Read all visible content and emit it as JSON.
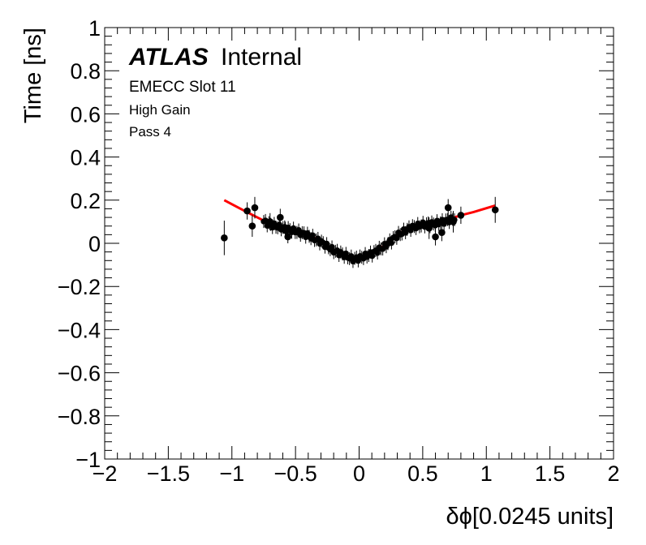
{
  "chart_data": {
    "type": "scatter",
    "xlabel": "δϕ[0.0245 units]",
    "ylabel": "Time [ns]",
    "xlim": [
      -2,
      2
    ],
    "ylim": [
      -1,
      1
    ],
    "x_ticks": [
      -2,
      -1.5,
      -1,
      -0.5,
      0,
      0.5,
      1,
      1.5,
      2
    ],
    "x_tick_labels": [
      "−2",
      "−1.5",
      "−1",
      "−0.5",
      "0",
      "0.5",
      "1",
      "1.5",
      "2"
    ],
    "y_ticks": [
      -1,
      -0.8,
      -0.6,
      -0.4,
      -0.2,
      0,
      0.2,
      0.4,
      0.6,
      0.8,
      1
    ],
    "y_tick_labels": [
      "−1",
      "−0.8",
      "−0.6",
      "−0.4",
      "−0.2",
      "0",
      "0.2",
      "0.4",
      "0.6",
      "0.8",
      "1"
    ],
    "grid": false,
    "annotations": {
      "experiment": "ATLAS",
      "status": "Internal",
      "line1": "EMECC Slot 11",
      "line2": "High Gain",
      "line3": "Pass 4"
    },
    "points": [
      {
        "x": -1.06,
        "y": 0.025,
        "err": 0.08
      },
      {
        "x": -0.88,
        "y": 0.15,
        "err": 0.04
      },
      {
        "x": -0.84,
        "y": 0.08,
        "err": 0.05
      },
      {
        "x": -0.82,
        "y": 0.165,
        "err": 0.05
      },
      {
        "x": -0.7,
        "y": 0.1,
        "err": 0.04
      },
      {
        "x": -0.62,
        "y": 0.12,
        "err": 0.04
      },
      {
        "x": -0.58,
        "y": 0.06,
        "err": 0.04
      },
      {
        "x": -0.56,
        "y": 0.03,
        "err": 0.03
      },
      {
        "x": 0.55,
        "y": 0.07,
        "err": 0.05
      },
      {
        "x": 0.6,
        "y": 0.03,
        "err": 0.04
      },
      {
        "x": 0.65,
        "y": 0.05,
        "err": 0.04
      },
      {
        "x": 0.7,
        "y": 0.165,
        "err": 0.04
      },
      {
        "x": 0.74,
        "y": 0.1,
        "err": 0.05
      },
      {
        "x": 0.8,
        "y": 0.13,
        "err": 0.04
      },
      {
        "x": 1.07,
        "y": 0.155,
        "err": 0.06
      }
    ],
    "dense_band": {
      "x_start": -0.75,
      "x_end": 0.75,
      "count": 110,
      "err": 0.03
    },
    "fit_curve": {
      "name": "fit",
      "color": "#ff0000",
      "x": [
        -1.06,
        -0.9,
        -0.8,
        -0.7,
        -0.6,
        -0.5,
        -0.4,
        -0.3,
        -0.2,
        -0.1,
        -0.05,
        0.0,
        0.1,
        0.2,
        0.3,
        0.4,
        0.5,
        0.6,
        0.7,
        0.8,
        0.9,
        1.07
      ],
      "y": [
        0.2,
        0.15,
        0.12,
        0.09,
        0.075,
        0.06,
        0.04,
        0.01,
        -0.03,
        -0.055,
        -0.07,
        -0.065,
        -0.045,
        -0.01,
        0.04,
        0.075,
        0.09,
        0.095,
        0.11,
        0.13,
        0.145,
        0.175
      ]
    }
  }
}
